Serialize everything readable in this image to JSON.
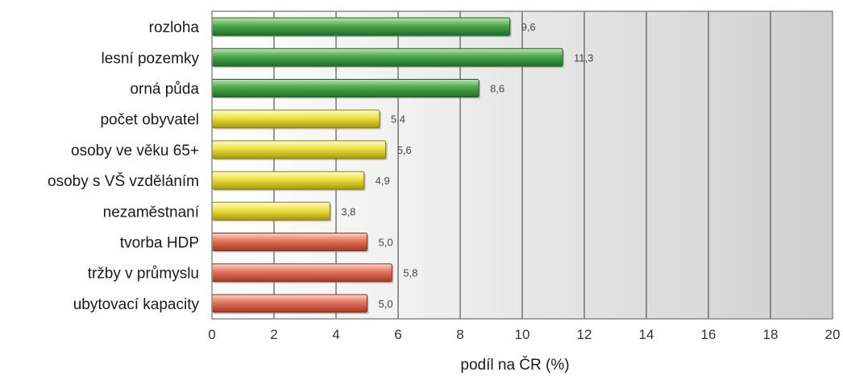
{
  "chart_data": {
    "type": "bar",
    "orientation": "horizontal",
    "categories": [
      "rozloha",
      "lesní pozemky",
      "orná půda",
      "počet obyvatel",
      "osoby ve věku 65+",
      "osoby s VŠ vzděláním",
      "nezaměstnaní",
      "tvorba HDP",
      "tržby v průmyslu",
      "ubytovací kapacity"
    ],
    "values": [
      9.6,
      11.3,
      8.6,
      5.4,
      5.6,
      4.9,
      3.8,
      5.0,
      5.8,
      5.0
    ],
    "value_labels": [
      "9,6",
      "11,3",
      "8,6",
      "5,4",
      "5,6",
      "4,9",
      "3,8",
      "5,0",
      "5,8",
      "5,0"
    ],
    "bar_colors": [
      "#3f9a3f",
      "#3f9a3f",
      "#3f9a3f",
      "#e8dc2a",
      "#e8dc2a",
      "#e8dc2a",
      "#e8dc2a",
      "#e06a4e",
      "#e06a4e",
      "#e06a4e"
    ],
    "xlim": [
      0,
      20
    ],
    "x_ticks": [
      0,
      2,
      4,
      6,
      8,
      10,
      12,
      14,
      16,
      18,
      20
    ],
    "x_tick_labels": [
      "0",
      "2",
      "4",
      "6",
      "8",
      "10",
      "12",
      "14",
      "16",
      "18",
      "20"
    ],
    "xlabel": "podíl na ČR (%)",
    "ylabel": "",
    "title": "",
    "grid": true,
    "grid_axis": "x"
  }
}
